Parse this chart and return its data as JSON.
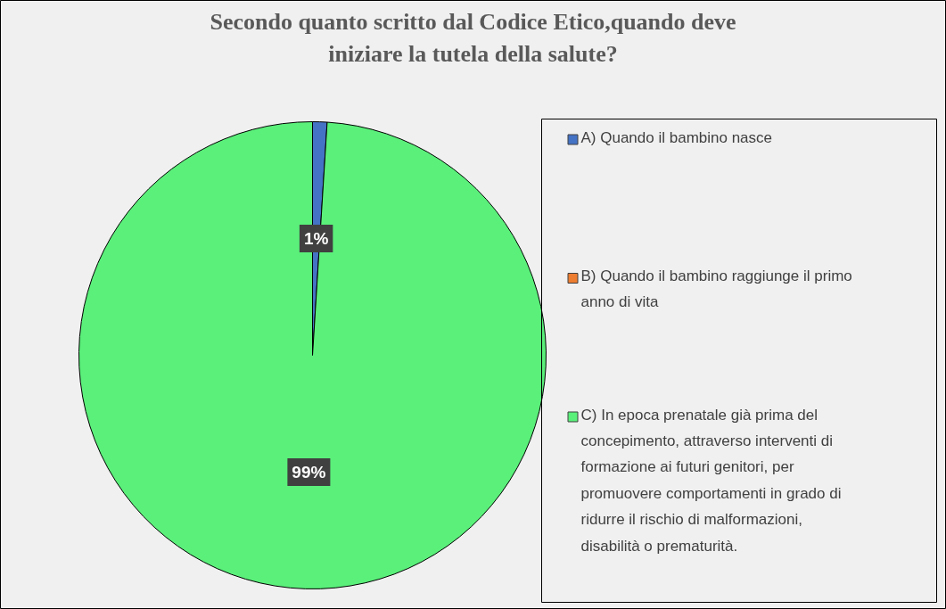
{
  "chart_data": {
    "type": "pie",
    "title": "Secondo quanto scritto dal Codice Etico,quando deve iniziare la tutela della salute?",
    "categories": [
      "A) Quando il bambino nasce",
      "B) Quando il bambino raggiunge il primo anno di vita",
      "C) In epoca prenatale già prima del concepimento, attraverso interventi di formazione ai futuri genitori, per promuovere comportamenti in grado di ridurre il rischio di malformazioni, disabilità o prematurità."
    ],
    "values": [
      1,
      0,
      99
    ],
    "colors": [
      "#4472c4",
      "#ed7d31",
      "#5af07a"
    ],
    "value_labels": [
      "1%",
      null,
      "99%"
    ],
    "legend": "right"
  }
}
